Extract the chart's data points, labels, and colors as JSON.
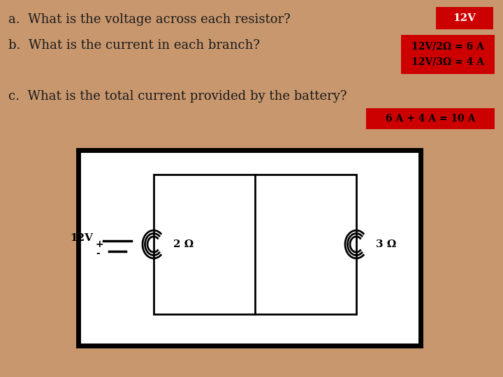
{
  "bg_color": "#C8976E",
  "text_color": "#1a1a1a",
  "answer_bg": "#CC0000",
  "q_a": "a.  What is the voltage across each resistor?",
  "q_b": "b.  What is the current in each branch?",
  "q_c": "c.  What is the total current provided by the battery?",
  "ans_a": "12V",
  "ans_b_line1": "12V/2Ω = 6 A",
  "ans_b_line2": "12V/3Ω = 4 A",
  "ans_c": "6 A + 4 A = 10 A",
  "circuit_label": "12V",
  "r1_label": "2 Ω",
  "r2_label": "3 Ω",
  "text_fontsize": 13,
  "ans_a_fontsize": 11,
  "ans_b_fontsize": 10,
  "ans_c_fontsize": 10,
  "circ_fontsize": 10
}
